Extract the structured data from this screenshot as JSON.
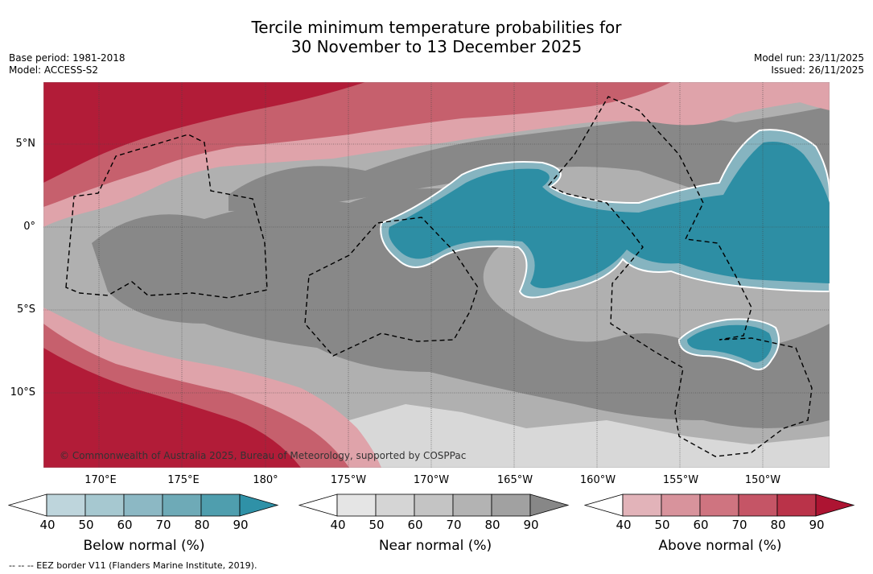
{
  "title": {
    "line1": "Tercile minimum temperature probabilities for",
    "line2": "30 November to 13 December 2025"
  },
  "meta_left": {
    "base_period": "Base period: 1981-2018",
    "model": "Model: ACCESS-S2"
  },
  "meta_right": {
    "model_run": "Model run: 23/11/2025",
    "issued": "Issued: 26/11/2025"
  },
  "map": {
    "copyright": "© Commonwealth of Australia 2025, Bureau of Meteorology, supported by COSPPac",
    "lat_labels": [
      "5°N",
      "0°",
      "5°S",
      "10°S"
    ],
    "lon_labels": [
      "170°E",
      "175°E",
      "180°",
      "175°W",
      "170°W",
      "165°W",
      "160°W",
      "155°W",
      "150°W"
    ],
    "colors": {
      "above": [
        "#f8dfe2",
        "#dfa3aa",
        "#d0828b",
        "#c6606d",
        "#bd3d50",
        "#b21c38"
      ],
      "near": [
        "#ededed",
        "#dadada",
        "#c6c6c6",
        "#b0b0b0",
        "#9c9c9c",
        "#888888"
      ],
      "below": [
        "#cfe0e5",
        "#a9c8d0",
        "#86b4c0",
        "#63a4b1",
        "#4596a8",
        "#2d8ea4"
      ]
    }
  },
  "colorbars": [
    {
      "id": "below",
      "label": "Below normal (%)",
      "ticks": [
        "40",
        "50",
        "60",
        "70",
        "80",
        "90"
      ],
      "colors": [
        "#ffffff",
        "#bed5dc",
        "#a6c8d0",
        "#8cb8c4",
        "#6eaab7",
        "#4f9eae",
        "#2f91a7"
      ]
    },
    {
      "id": "near",
      "label": "Near normal (%)",
      "ticks": [
        "40",
        "50",
        "60",
        "70",
        "80",
        "90"
      ],
      "colors": [
        "#ffffff",
        "#e5e5e5",
        "#d5d5d5",
        "#c4c4c4",
        "#b3b3b3",
        "#a1a1a1",
        "#878787"
      ]
    },
    {
      "id": "above",
      "label": "Above normal (%)",
      "ticks": [
        "40",
        "50",
        "60",
        "70",
        "80",
        "90"
      ],
      "colors": [
        "#ffffff",
        "#e2b3b9",
        "#d8939c",
        "#cf7480",
        "#c55566",
        "#ba3349",
        "#ad1432"
      ]
    }
  ],
  "footnote": "--  --  -- EEZ border V11 (Flanders Marine Institute, 2019)."
}
